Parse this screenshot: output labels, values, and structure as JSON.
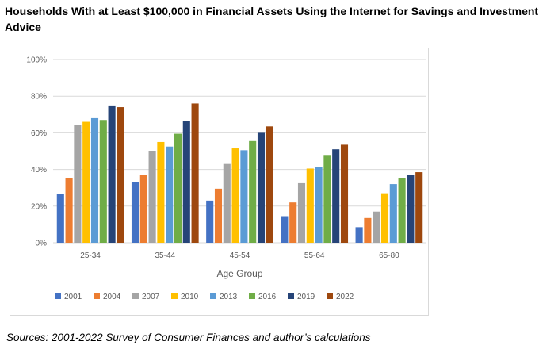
{
  "title": "Households With at Least $100,000 in Financial Assets Using the Internet for Savings and Investment Advice",
  "source": "Sources: 2001-2022 Survey of Consumer Finances and author’s calculations",
  "chart_data": {
    "type": "bar",
    "title": "",
    "xlabel": "Age Group",
    "ylabel": "",
    "categories": [
      "25-34",
      "35-44",
      "45-54",
      "55-64",
      "65-80"
    ],
    "ylim": [
      0,
      100
    ],
    "yticks": [
      "0%",
      "20%",
      "40%",
      "60%",
      "80%",
      "100%"
    ],
    "grid": true,
    "legend_position": "bottom",
    "series": [
      {
        "name": "2001",
        "color": "#4472c4",
        "values": [
          26.5,
          33,
          23,
          14.5,
          8.5
        ]
      },
      {
        "name": "2004",
        "color": "#ed7d31",
        "values": [
          35.5,
          37,
          29.5,
          22,
          13.5
        ]
      },
      {
        "name": "2007",
        "color": "#a5a5a5",
        "values": [
          64.5,
          50,
          43,
          32.5,
          17
        ]
      },
      {
        "name": "2010",
        "color": "#ffc000",
        "values": [
          66,
          55,
          51.5,
          40.5,
          27
        ]
      },
      {
        "name": "2013",
        "color": "#5b9bd5",
        "values": [
          68,
          52.5,
          50.5,
          41.5,
          32
        ]
      },
      {
        "name": "2016",
        "color": "#70ad47",
        "values": [
          67,
          59.5,
          55.5,
          47.5,
          35.5
        ]
      },
      {
        "name": "2019",
        "color": "#264478",
        "values": [
          74.5,
          66.5,
          60,
          51,
          37
        ]
      },
      {
        "name": "2022",
        "color": "#9e480e",
        "values": [
          74,
          76,
          63.5,
          53.5,
          38.5
        ]
      }
    ]
  }
}
